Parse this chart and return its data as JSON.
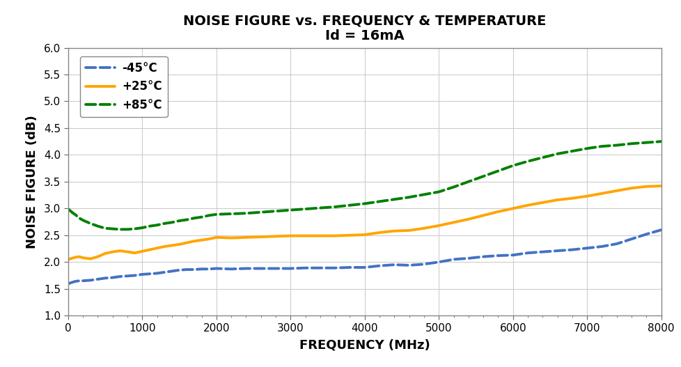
{
  "title_line1": "NOISE FIGURE vs. FREQUENCY & TEMPERATURE",
  "title_line2": "Id = 16mA",
  "xlabel": "FREQUENCY (MHz)",
  "ylabel": "NOISE FIGURE (dB)",
  "xlim": [
    0,
    8000
  ],
  "ylim": [
    1.0,
    6.0
  ],
  "xticks": [
    0,
    1000,
    2000,
    3000,
    4000,
    5000,
    6000,
    7000,
    8000
  ],
  "yticks": [
    1.0,
    1.5,
    2.0,
    2.5,
    3.0,
    3.5,
    4.0,
    4.5,
    5.0,
    5.5,
    6.0
  ],
  "background_color": "#ffffff",
  "plot_bg_color": "#ffffff",
  "grid_color": "#cccccc",
  "series": [
    {
      "label": "-45°C",
      "color": "#4472C4",
      "linestyle": "dashed",
      "linewidth": 2.8,
      "freq": [
        10,
        50,
        100,
        150,
        200,
        300,
        400,
        500,
        600,
        700,
        800,
        900,
        1000,
        1100,
        1200,
        1300,
        1400,
        1500,
        1600,
        1700,
        1800,
        1900,
        2000,
        2200,
        2400,
        2600,
        2800,
        3000,
        3200,
        3400,
        3600,
        3800,
        4000,
        4200,
        4400,
        4600,
        4800,
        5000,
        5200,
        5400,
        5600,
        5800,
        6000,
        6200,
        6400,
        6600,
        6800,
        7000,
        7200,
        7400,
        7600,
        7800,
        8000
      ],
      "nf": [
        1.6,
        1.62,
        1.64,
        1.65,
        1.65,
        1.66,
        1.68,
        1.7,
        1.71,
        1.73,
        1.74,
        1.75,
        1.77,
        1.78,
        1.79,
        1.81,
        1.83,
        1.85,
        1.86,
        1.86,
        1.87,
        1.87,
        1.88,
        1.87,
        1.88,
        1.88,
        1.88,
        1.88,
        1.89,
        1.89,
        1.89,
        1.9,
        1.9,
        1.93,
        1.95,
        1.94,
        1.96,
        2.0,
        2.05,
        2.07,
        2.1,
        2.12,
        2.13,
        2.17,
        2.19,
        2.21,
        2.23,
        2.26,
        2.29,
        2.34,
        2.43,
        2.52,
        2.6
      ]
    },
    {
      "label": "+25°C",
      "color": "#FFA500",
      "linestyle": "solid",
      "linewidth": 2.8,
      "freq": [
        10,
        50,
        100,
        150,
        200,
        300,
        400,
        500,
        600,
        700,
        800,
        900,
        1000,
        1100,
        1200,
        1300,
        1400,
        1500,
        1600,
        1700,
        1800,
        1900,
        2000,
        2200,
        2400,
        2600,
        2800,
        3000,
        3200,
        3400,
        3600,
        3800,
        4000,
        4200,
        4400,
        4600,
        4800,
        5000,
        5200,
        5400,
        5600,
        5800,
        6000,
        6200,
        6400,
        6600,
        6800,
        7000,
        7200,
        7400,
        7600,
        7800,
        8000
      ],
      "nf": [
        2.05,
        2.07,
        2.09,
        2.1,
        2.08,
        2.06,
        2.1,
        2.16,
        2.19,
        2.21,
        2.19,
        2.17,
        2.2,
        2.23,
        2.26,
        2.29,
        2.31,
        2.33,
        2.36,
        2.39,
        2.41,
        2.43,
        2.46,
        2.45,
        2.46,
        2.47,
        2.48,
        2.49,
        2.49,
        2.49,
        2.49,
        2.5,
        2.51,
        2.55,
        2.58,
        2.59,
        2.63,
        2.68,
        2.74,
        2.8,
        2.87,
        2.94,
        3.0,
        3.06,
        3.11,
        3.16,
        3.19,
        3.23,
        3.28,
        3.33,
        3.38,
        3.41,
        3.42
      ]
    },
    {
      "label": "+85°C",
      "color": "#008000",
      "linestyle": "dashed",
      "linewidth": 2.8,
      "freq": [
        10,
        50,
        100,
        150,
        200,
        300,
        400,
        500,
        600,
        700,
        800,
        900,
        1000,
        1100,
        1200,
        1300,
        1400,
        1500,
        1600,
        1700,
        1800,
        1900,
        2000,
        2200,
        2400,
        2600,
        2800,
        3000,
        3200,
        3400,
        3600,
        3800,
        4000,
        4200,
        4400,
        4600,
        4800,
        5000,
        5200,
        5400,
        5600,
        5800,
        6000,
        6200,
        6400,
        6600,
        6800,
        7000,
        7200,
        7400,
        7600,
        7800,
        8000
      ],
      "nf": [
        2.98,
        2.93,
        2.88,
        2.82,
        2.78,
        2.72,
        2.67,
        2.63,
        2.62,
        2.61,
        2.61,
        2.62,
        2.64,
        2.67,
        2.69,
        2.72,
        2.74,
        2.77,
        2.79,
        2.82,
        2.84,
        2.87,
        2.89,
        2.9,
        2.91,
        2.93,
        2.95,
        2.97,
        2.99,
        3.01,
        3.03,
        3.06,
        3.09,
        3.13,
        3.17,
        3.21,
        3.26,
        3.31,
        3.4,
        3.5,
        3.6,
        3.7,
        3.8,
        3.88,
        3.95,
        4.02,
        4.07,
        4.12,
        4.16,
        4.18,
        4.21,
        4.23,
        4.25
      ]
    }
  ]
}
